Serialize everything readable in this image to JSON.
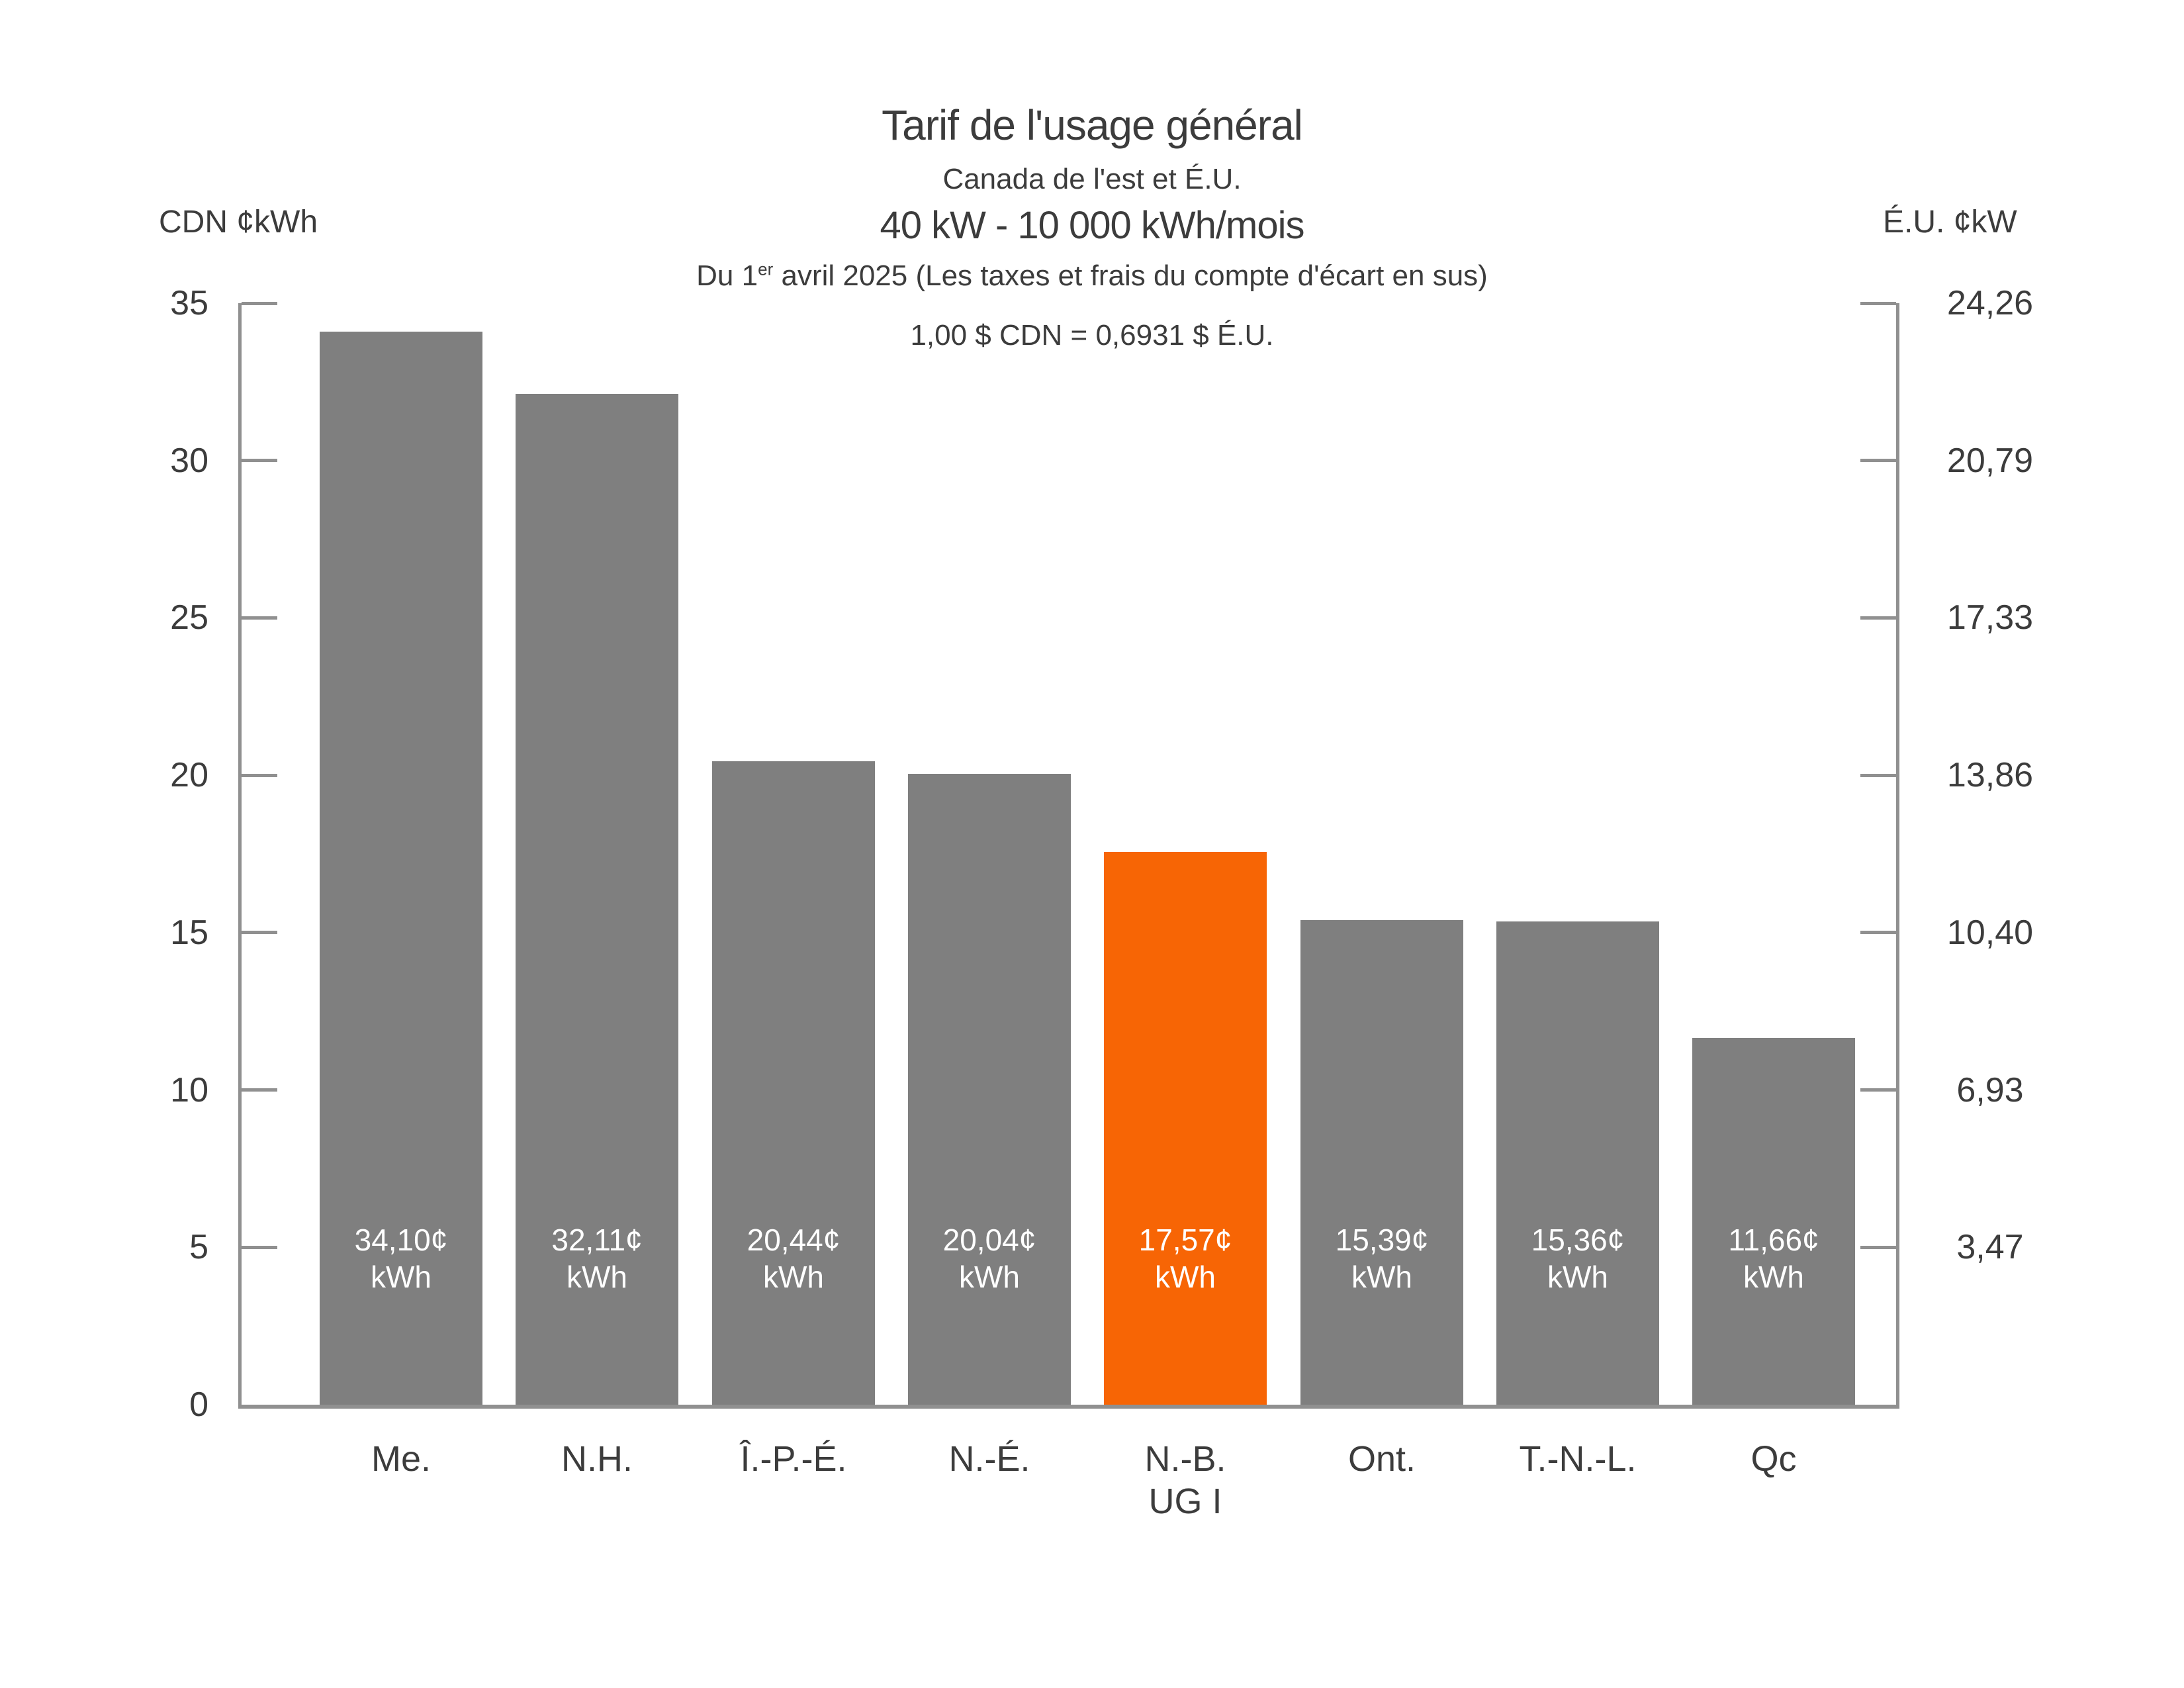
{
  "header": {
    "title": "Tarif de l'usage général",
    "subtitle_region": "Canada de l'est et É.U.",
    "subtitle_load": "40 kW - 10 000 kWh/mois",
    "date_note": {
      "prefix": "Du 1",
      "sup": "er",
      "rest": " avril 2025 (Les taxes et frais du compte d'écart en sus)"
    }
  },
  "chart_data": {
    "type": "bar",
    "title": "Tarif de l'usage général",
    "subtitle": "Canada de l'est et É.U. — 40 kW - 10 000 kWh/mois",
    "annotation": "1,00 $ CDN = 0,6931 $ É.U.",
    "ylabel_left": "CDN ¢kWh",
    "ylabel_right": "É.U. ¢kW",
    "ylim": [
      0,
      35
    ],
    "grid": false,
    "legend": null,
    "categories": [
      "Me.",
      "N.H.",
      "Î.-P.-É.",
      "N.-É.",
      "N.-B.",
      "Ont.",
      "T.-N.-L.",
      "Qc"
    ],
    "category_sublabels": [
      "",
      "",
      "",
      "",
      "UG I",
      "",
      "",
      ""
    ],
    "bar_ids": [
      "me",
      "nh",
      "ipe",
      "ne",
      "nb-ug1",
      "ont",
      "tnl",
      "qc"
    ],
    "values": [
      34.1,
      32.11,
      20.44,
      20.04,
      17.57,
      15.39,
      15.36,
      11.66
    ],
    "value_labels": [
      "34,10¢",
      "32,11¢",
      "20,44¢",
      "20,04¢",
      "17,57¢",
      "15,39¢",
      "15,36¢",
      "11,66¢"
    ],
    "value_label_unit": "kWh",
    "left_ticks": {
      "values": [
        0,
        5,
        10,
        15,
        20,
        25,
        30,
        35
      ],
      "labels": [
        "0",
        "5",
        "10",
        "15",
        "20",
        "25",
        "30",
        "35"
      ]
    },
    "right_ticks": {
      "values": [
        5,
        10,
        15,
        20,
        25,
        30,
        35
      ],
      "labels": [
        "3,47",
        "6,93",
        "10,40",
        "13,86",
        "17,33",
        "20,79",
        "24,26"
      ]
    },
    "highlight_index": 4,
    "colors": {
      "bar": "#7F7F7F",
      "highlight": "#F76505",
      "axis": "#909090",
      "text": "#3C3C3C",
      "value_label_text": "#FFFFFF"
    }
  }
}
